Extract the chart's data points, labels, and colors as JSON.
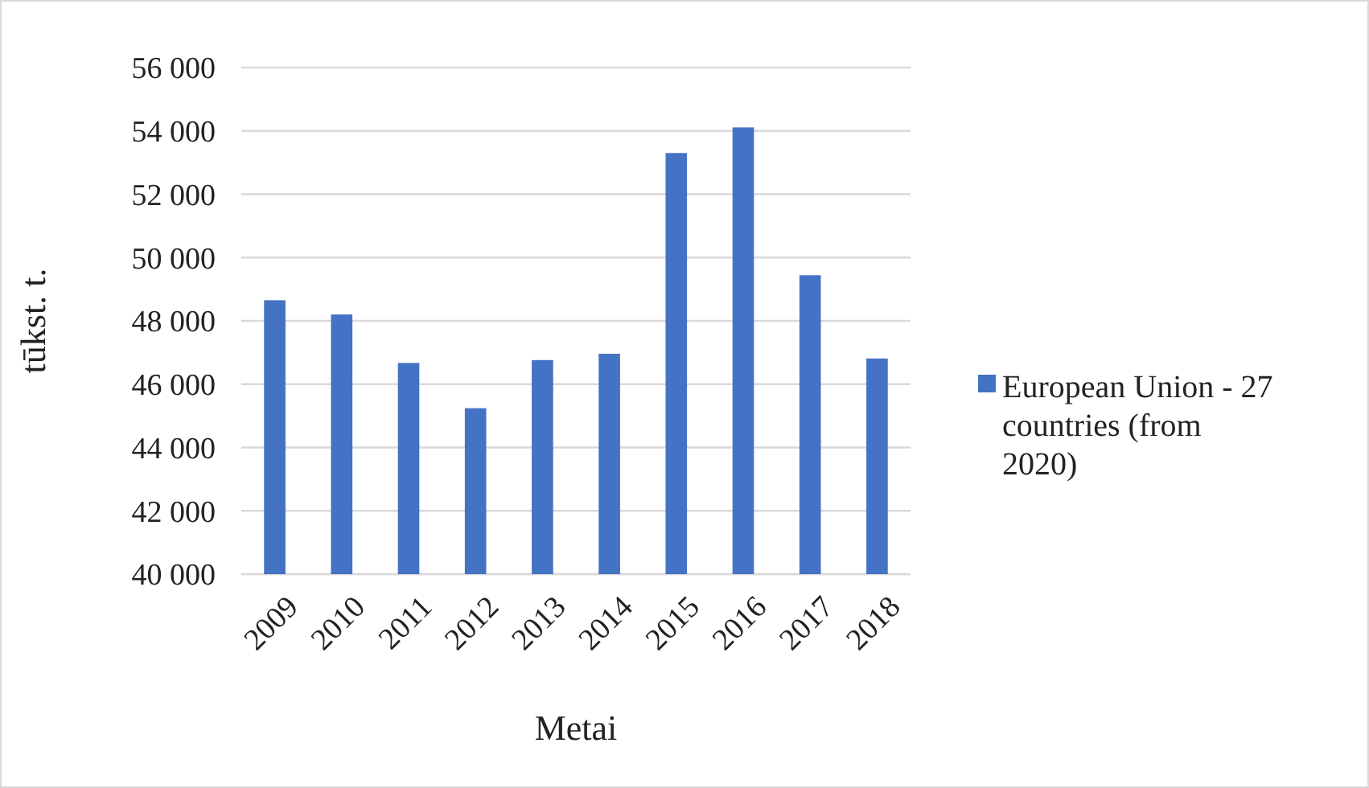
{
  "chart_data": {
    "type": "bar",
    "xlabel": "Metai",
    "ylabel": "tūkst. t.",
    "categories": [
      "2009",
      "2010",
      "2011",
      "2012",
      "2013",
      "2014",
      "2015",
      "2016",
      "2017",
      "2018"
    ],
    "series": [
      {
        "name": "European Union - 27 countries (from 2020)",
        "color": "#4472c4",
        "values": [
          48650,
          48200,
          46670,
          45240,
          46760,
          46960,
          53300,
          54110,
          49440,
          46810
        ]
      }
    ],
    "ylim": [
      40000,
      56000
    ],
    "yticks": [
      {
        "value": 40000,
        "label": "40 000"
      },
      {
        "value": 42000,
        "label": "42 000"
      },
      {
        "value": 44000,
        "label": "44 000"
      },
      {
        "value": 46000,
        "label": "46 000"
      },
      {
        "value": 48000,
        "label": "48 000"
      },
      {
        "value": 50000,
        "label": "50 000"
      },
      {
        "value": 52000,
        "label": "52 000"
      },
      {
        "value": 54000,
        "label": "54 000"
      },
      {
        "value": 56000,
        "label": "56 000"
      }
    ],
    "grid": "y",
    "legend": "right"
  }
}
